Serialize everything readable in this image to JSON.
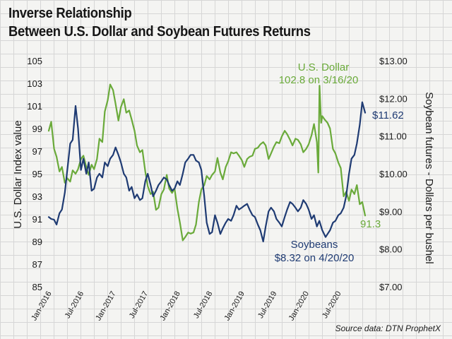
{
  "title_lines": [
    "Inverse Relationship",
    "Between U.S. Dollar and Soybean Futures Returns"
  ],
  "source": "Source data: DTN ProphetX",
  "colors": {
    "dollar": "#6aaa3a",
    "soybeans": "#1f3b73",
    "text": "#1a1a1a"
  },
  "chart_data": {
    "type": "line",
    "x_ticks": [
      "Jan-2016",
      "Jul-2016",
      "Jan-2017",
      "Jul-2017",
      "Jan-2018",
      "Jul-2018",
      "Jan-2019",
      "Jul-2019",
      "Jan-2020",
      "Jul-2020"
    ],
    "ylabel_left": "U.S. Dollar Index value",
    "ylabel_right": "Soybean futures - Dollars per bushel",
    "y_left_ticks": [
      "105",
      "103",
      "101",
      "99",
      "97",
      "95",
      "93",
      "91",
      "89",
      "87",
      "85"
    ],
    "y_left_range": [
      85,
      105
    ],
    "y_right_ticks": [
      "$13.00",
      "$12.00",
      "$11.00",
      "$10.00",
      "$9.00",
      "$8.00",
      "$7.00"
    ],
    "y_right_range": [
      7,
      13
    ],
    "x_range": [
      "2016-01",
      "2020-12"
    ],
    "series": [
      {
        "name": "U.S. Dollar",
        "axis": "left",
        "points": [
          [
            "2016-01",
            98.8
          ],
          [
            "2016-01-15",
            99.6
          ],
          [
            "2016-02",
            97.2
          ],
          [
            "2016-02-15",
            96.5
          ],
          [
            "2016-03",
            95.2
          ],
          [
            "2016-03-15",
            95.6
          ],
          [
            "2016-04",
            94.2
          ],
          [
            "2016-04-15",
            94.6
          ],
          [
            "2016-05",
            94.3
          ],
          [
            "2016-05-15",
            95.3
          ],
          [
            "2016-06",
            95.0
          ],
          [
            "2016-06-15",
            95.4
          ],
          [
            "2016-07",
            96.3
          ],
          [
            "2016-07-15",
            96.6
          ],
          [
            "2016-08",
            95.6
          ],
          [
            "2016-08-15",
            94.9
          ],
          [
            "2016-09",
            95.8
          ],
          [
            "2016-09-15",
            95.4
          ],
          [
            "2016-10",
            96.3
          ],
          [
            "2016-10-15",
            98.1
          ],
          [
            "2016-11",
            97.8
          ],
          [
            "2016-11-15",
            100.5
          ],
          [
            "2016-12",
            101.5
          ],
          [
            "2016-12-15",
            102.9
          ],
          [
            "2017-01",
            102.4
          ],
          [
            "2017-01-15",
            101.2
          ],
          [
            "2017-02",
            99.7
          ],
          [
            "2017-02-15",
            100.9
          ],
          [
            "2017-03",
            101.6
          ],
          [
            "2017-03-15",
            100.4
          ],
          [
            "2017-04",
            100.6
          ],
          [
            "2017-04-15",
            99.8
          ],
          [
            "2017-05",
            98.8
          ],
          [
            "2017-05-15",
            97.5
          ],
          [
            "2017-06",
            96.9
          ],
          [
            "2017-06-15",
            97.1
          ],
          [
            "2017-07",
            95.2
          ],
          [
            "2017-07-15",
            93.9
          ],
          [
            "2017-08",
            93.2
          ],
          [
            "2017-08-15",
            93.4
          ],
          [
            "2017-09",
            91.8
          ],
          [
            "2017-09-15",
            92.0
          ],
          [
            "2017-10",
            93.2
          ],
          [
            "2017-10-15",
            93.6
          ],
          [
            "2017-11",
            94.9
          ],
          [
            "2017-11-15",
            93.7
          ],
          [
            "2017-12",
            93.3
          ],
          [
            "2017-12-15",
            93.7
          ],
          [
            "2018-01",
            91.9
          ],
          [
            "2018-01-15",
            90.7
          ],
          [
            "2018-02",
            89.1
          ],
          [
            "2018-02-15",
            89.4
          ],
          [
            "2018-03",
            89.8
          ],
          [
            "2018-03-15",
            89.7
          ],
          [
            "2018-04",
            89.8
          ],
          [
            "2018-04-15",
            90.5
          ],
          [
            "2018-05",
            92.5
          ],
          [
            "2018-05-15",
            93.6
          ],
          [
            "2018-06",
            94.0
          ],
          [
            "2018-06-15",
            94.8
          ],
          [
            "2018-07",
            94.5
          ],
          [
            "2018-07-15",
            94.9
          ],
          [
            "2018-08",
            95.2
          ],
          [
            "2018-08-15",
            96.4
          ],
          [
            "2018-09",
            95.1
          ],
          [
            "2018-09-15",
            94.5
          ],
          [
            "2018-10",
            95.6
          ],
          [
            "2018-10-15",
            96.1
          ],
          [
            "2018-11",
            96.9
          ],
          [
            "2018-11-15",
            96.8
          ],
          [
            "2018-12",
            96.9
          ],
          [
            "2018-12-15",
            96.6
          ],
          [
            "2019-01",
            96.2
          ],
          [
            "2019-01-15",
            95.6
          ],
          [
            "2019-02",
            96.3
          ],
          [
            "2019-02-15",
            96.5
          ],
          [
            "2019-03",
            96.6
          ],
          [
            "2019-03-15",
            97.2
          ],
          [
            "2019-04",
            97.3
          ],
          [
            "2019-04-15",
            97.6
          ],
          [
            "2019-05",
            97.8
          ],
          [
            "2019-05-15",
            97.5
          ],
          [
            "2019-06",
            96.3
          ],
          [
            "2019-06-15",
            96.8
          ],
          [
            "2019-07",
            97.4
          ],
          [
            "2019-07-15",
            97.8
          ],
          [
            "2019-08",
            97.7
          ],
          [
            "2019-08-15",
            98.3
          ],
          [
            "2019-09",
            98.8
          ],
          [
            "2019-09-15",
            98.5
          ],
          [
            "2019-10",
            98.0
          ],
          [
            "2019-10-15",
            97.5
          ],
          [
            "2019-11",
            98.1
          ],
          [
            "2019-11-15",
            98.0
          ],
          [
            "2019-12",
            97.6
          ],
          [
            "2019-12-15",
            96.9
          ],
          [
            "2020-01",
            97.2
          ],
          [
            "2020-01-15",
            97.6
          ],
          [
            "2020-02",
            98.4
          ],
          [
            "2020-02-15",
            99.4
          ],
          [
            "2020-03",
            97.8
          ],
          [
            "2020-03-09",
            95.1
          ],
          [
            "2020-03-16",
            102.8
          ],
          [
            "2020-03-25",
            99.5
          ],
          [
            "2020-04",
            100.1
          ],
          [
            "2020-04-15",
            99.8
          ],
          [
            "2020-05",
            99.5
          ],
          [
            "2020-05-15",
            99.0
          ],
          [
            "2020-06",
            97.2
          ],
          [
            "2020-06-15",
            96.8
          ],
          [
            "2020-07",
            96.0
          ],
          [
            "2020-07-15",
            95.5
          ],
          [
            "2020-08",
            93.0
          ],
          [
            "2020-08-15",
            93.4
          ],
          [
            "2020-09",
            92.6
          ],
          [
            "2020-09-15",
            93.6
          ],
          [
            "2020-10",
            93.2
          ],
          [
            "2020-10-15",
            94.0
          ],
          [
            "2020-11",
            92.3
          ],
          [
            "2020-11-15",
            92.5
          ],
          [
            "2020-12",
            91.3
          ]
        ]
      },
      {
        "name": "Soybeans",
        "axis": "right",
        "points": [
          [
            "2016-01",
            8.85
          ],
          [
            "2016-01-15",
            8.8
          ],
          [
            "2016-02",
            8.78
          ],
          [
            "2016-02-15",
            8.65
          ],
          [
            "2016-03",
            8.95
          ],
          [
            "2016-03-15",
            9.05
          ],
          [
            "2016-04",
            9.5
          ],
          [
            "2016-04-15",
            10.1
          ],
          [
            "2016-05",
            10.8
          ],
          [
            "2016-05-15",
            10.9
          ],
          [
            "2016-06",
            11.8
          ],
          [
            "2016-06-15",
            11.2
          ],
          [
            "2016-07",
            10.1
          ],
          [
            "2016-07-15",
            10.4
          ],
          [
            "2016-08",
            10.0
          ],
          [
            "2016-08-15",
            10.3
          ],
          [
            "2016-09",
            9.55
          ],
          [
            "2016-09-15",
            9.6
          ],
          [
            "2016-10",
            9.9
          ],
          [
            "2016-10-15",
            10.0
          ],
          [
            "2016-11",
            9.9
          ],
          [
            "2016-11-15",
            10.3
          ],
          [
            "2016-12",
            10.2
          ],
          [
            "2016-12-15",
            10.4
          ],
          [
            "2017-01",
            10.5
          ],
          [
            "2017-01-15",
            10.7
          ],
          [
            "2017-02",
            10.5
          ],
          [
            "2017-02-15",
            10.3
          ],
          [
            "2017-03",
            10.0
          ],
          [
            "2017-03-15",
            9.9
          ],
          [
            "2017-04",
            9.55
          ],
          [
            "2017-04-15",
            9.65
          ],
          [
            "2017-05",
            9.35
          ],
          [
            "2017-05-15",
            9.45
          ],
          [
            "2017-06",
            9.3
          ],
          [
            "2017-06-15",
            9.35
          ],
          [
            "2017-07",
            9.8
          ],
          [
            "2017-07-15",
            10.0
          ],
          [
            "2017-08",
            9.7
          ],
          [
            "2017-08-15",
            9.4
          ],
          [
            "2017-09",
            9.55
          ],
          [
            "2017-09-15",
            9.7
          ],
          [
            "2017-10",
            9.8
          ],
          [
            "2017-10-15",
            9.9
          ],
          [
            "2017-11",
            9.85
          ],
          [
            "2017-11-15",
            9.7
          ],
          [
            "2017-12",
            9.55
          ],
          [
            "2017-12-15",
            9.6
          ],
          [
            "2018-01",
            9.8
          ],
          [
            "2018-01-15",
            9.7
          ],
          [
            "2018-02",
            10.0
          ],
          [
            "2018-02-15",
            10.3
          ],
          [
            "2018-03",
            10.4
          ],
          [
            "2018-03-15",
            10.5
          ],
          [
            "2018-04",
            10.5
          ],
          [
            "2018-04-15",
            10.35
          ],
          [
            "2018-05",
            10.3
          ],
          [
            "2018-05-15",
            10.1
          ],
          [
            "2018-06",
            9.4
          ],
          [
            "2018-06-15",
            8.7
          ],
          [
            "2018-07",
            8.4
          ],
          [
            "2018-07-15",
            8.45
          ],
          [
            "2018-08",
            8.9
          ],
          [
            "2018-08-15",
            8.7
          ],
          [
            "2018-09",
            8.4
          ],
          [
            "2018-09-15",
            8.55
          ],
          [
            "2018-10",
            8.7
          ],
          [
            "2018-10-15",
            8.8
          ],
          [
            "2018-11",
            8.75
          ],
          [
            "2018-11-15",
            8.9
          ],
          [
            "2018-12",
            9.15
          ],
          [
            "2018-12-15",
            9.05
          ],
          [
            "2019-01",
            9.1
          ],
          [
            "2019-01-15",
            9.15
          ],
          [
            "2019-02",
            9.2
          ],
          [
            "2019-02-15",
            9.05
          ],
          [
            "2019-03",
            8.9
          ],
          [
            "2019-03-15",
            8.85
          ],
          [
            "2019-04",
            8.65
          ],
          [
            "2019-04-15",
            8.5
          ],
          [
            "2019-05",
            8.2
          ],
          [
            "2019-05-15",
            8.6
          ],
          [
            "2019-06",
            9.0
          ],
          [
            "2019-06-15",
            9.1
          ],
          [
            "2019-07",
            9.0
          ],
          [
            "2019-07-15",
            8.8
          ],
          [
            "2019-08",
            8.7
          ],
          [
            "2019-08-15",
            8.6
          ],
          [
            "2019-09",
            8.85
          ],
          [
            "2019-09-15",
            9.05
          ],
          [
            "2019-10",
            9.25
          ],
          [
            "2019-10-15",
            9.2
          ],
          [
            "2019-11",
            9.1
          ],
          [
            "2019-11-15",
            9.0
          ],
          [
            "2019-12",
            9.1
          ],
          [
            "2019-12-15",
            9.3
          ],
          [
            "2020-01",
            9.2
          ],
          [
            "2020-01-15",
            9.05
          ],
          [
            "2020-02",
            8.8
          ],
          [
            "2020-02-15",
            8.9
          ],
          [
            "2020-03",
            8.6
          ],
          [
            "2020-03-15",
            8.75
          ],
          [
            "2020-04",
            8.5
          ],
          [
            "2020-04-20",
            8.32
          ],
          [
            "2020-05",
            8.4
          ],
          [
            "2020-05-15",
            8.5
          ],
          [
            "2020-06",
            8.7
          ],
          [
            "2020-06-15",
            8.75
          ],
          [
            "2020-07",
            8.9
          ],
          [
            "2020-07-15",
            8.95
          ],
          [
            "2020-08",
            9.1
          ],
          [
            "2020-08-15",
            9.4
          ],
          [
            "2020-09",
            10.0
          ],
          [
            "2020-09-15",
            10.4
          ],
          [
            "2020-10",
            10.5
          ],
          [
            "2020-10-15",
            10.8
          ],
          [
            "2020-11",
            11.3
          ],
          [
            "2020-11-15",
            11.9
          ],
          [
            "2020-12",
            11.62
          ]
        ]
      }
    ],
    "annotations": {
      "dollar_name": "U.S. Dollar",
      "dollar_peak": "102.8 on 3/16/20",
      "dollar_end": "91.3",
      "soy_end": "$11.62",
      "soy_name": "Soybeans",
      "soy_low": "$8.32 on 4/20/20"
    },
    "grid": true
  }
}
